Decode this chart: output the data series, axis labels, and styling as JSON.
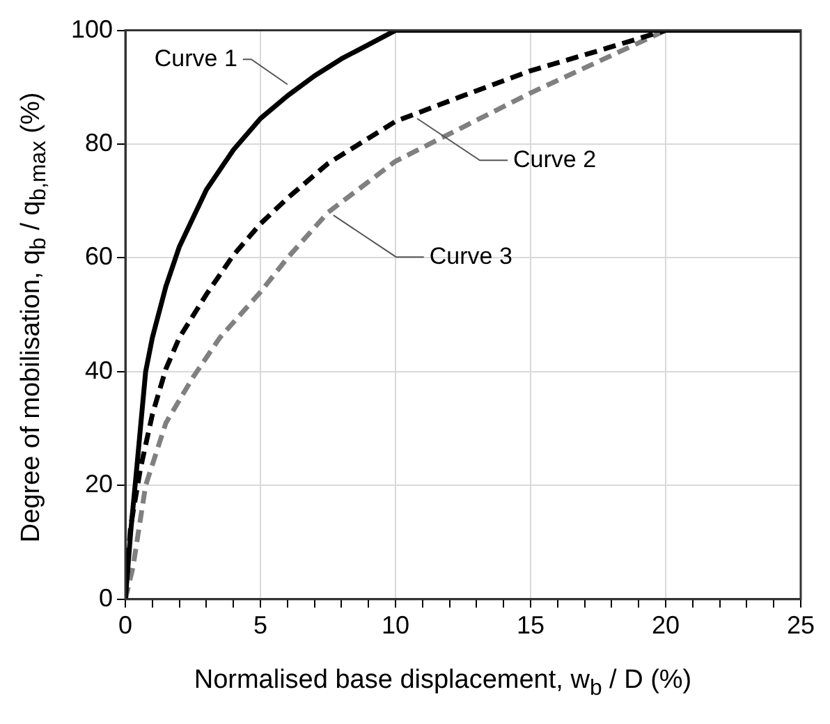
{
  "chart_data": {
    "type": "line",
    "xlabel": "Normalised base displacement,  w$_{b}$ / D  (%)",
    "ylabel": "Degree of mobilisation,  q$_{b}$ / q$_{b,max}$  (%)",
    "xlim": [
      0,
      25
    ],
    "ylim": [
      0,
      100
    ],
    "xticks": [
      0,
      {
        "value": 1,
        "label": null
      },
      {
        "value": 2,
        "label": null
      },
      {
        "value": 3,
        "label": null
      },
      {
        "value": 4,
        "label": null
      },
      5,
      {
        "value": 6,
        "label": null
      },
      {
        "value": 7,
        "label": null
      },
      {
        "value": 8,
        "label": null
      },
      {
        "value": 9,
        "label": null
      },
      10,
      {
        "value": 11,
        "label": null
      },
      {
        "value": 12,
        "label": null
      },
      {
        "value": 13,
        "label": null
      },
      {
        "value": 14,
        "label": null
      },
      15,
      {
        "value": 16,
        "label": null
      },
      {
        "value": 17,
        "label": null
      },
      {
        "value": 18,
        "label": null
      },
      {
        "value": 19,
        "label": null
      },
      20,
      {
        "value": 21,
        "label": null
      },
      {
        "value": 22,
        "label": null
      },
      {
        "value": 23,
        "label": null
      },
      {
        "value": 24,
        "label": null
      },
      25
    ],
    "yticks": [
      0,
      20,
      40,
      60,
      80,
      100
    ],
    "grid": true,
    "marker": "none",
    "series": [
      {
        "color": "#000000",
        "line_style": "solid",
        "x": [
          0,
          0.2,
          0.4,
          0.75,
          1,
          1.5,
          2,
          2.5,
          3,
          4,
          5,
          6,
          7,
          8,
          9,
          10,
          25
        ],
        "values": [
          0,
          12,
          22,
          40,
          46,
          55,
          62,
          67,
          72,
          79,
          84.5,
          88.5,
          92,
          95,
          97.5,
          100,
          100
        ]
      },
      {
        "color": "#000000",
        "line_style": "dashed",
        "x": [
          0,
          0.19,
          0.56,
          1,
          1.5,
          2,
          3,
          4,
          5,
          6,
          7.5,
          10,
          12.5,
          15,
          17.5,
          20,
          25
        ],
        "values": [
          0,
          12.7,
          23,
          32.5,
          40.5,
          46,
          53.6,
          60.5,
          66,
          70.5,
          76.6,
          84,
          88.5,
          92.9,
          96.4,
          100,
          100
        ]
      },
      {
        "color": "#808080",
        "line_style": "dashed",
        "x": [
          0,
          0.28,
          0.75,
          1.5,
          2.5,
          3.5,
          5,
          6,
          7.5,
          10,
          12.5,
          15,
          17.5,
          20,
          25
        ],
        "values": [
          0,
          5.6,
          20,
          31,
          39,
          46,
          54,
          60,
          68,
          77,
          83,
          89,
          94.5,
          100,
          100
        ]
      }
    ],
    "annotations": [
      {
        "text": "Curve 1",
        "x": 6,
        "y": 90.5
      },
      {
        "text": "Curve 2",
        "x": 10.8,
        "y": 84.5
      },
      {
        "text": "Curve 3",
        "x": 7.7,
        "y": 67.5
      }
    ]
  }
}
